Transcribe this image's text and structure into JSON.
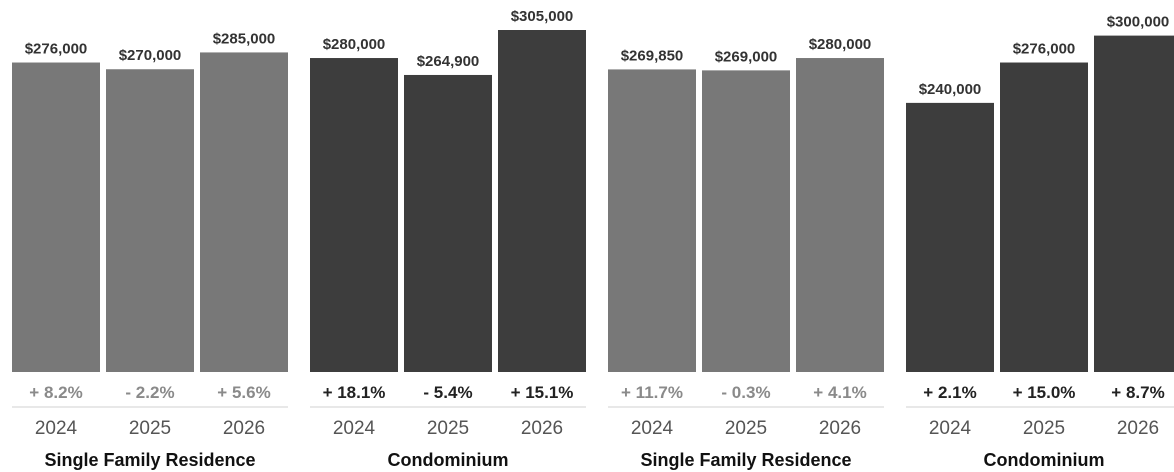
{
  "chart_data": [
    {
      "type": "bar",
      "title": "Single Family Residence",
      "categories": [
        "2024",
        "2025",
        "2026"
      ],
      "values": [
        276000,
        270000,
        285000
      ],
      "value_labels": [
        "$276,000",
        "$270,000",
        "$285,000"
      ],
      "change_labels": [
        "+ 8.2%",
        "- 2.2%",
        "+ 5.6%"
      ],
      "color": "#787878",
      "change_color": "#8a8a8a",
      "ylim": [
        0,
        305000
      ]
    },
    {
      "type": "bar",
      "title": "Condominium",
      "categories": [
        "2024",
        "2025",
        "2026"
      ],
      "values": [
        280000,
        264900,
        305000
      ],
      "value_labels": [
        "$280,000",
        "$264,900",
        "$305,000"
      ],
      "change_labels": [
        "+ 18.1%",
        "- 5.4%",
        "+ 15.1%"
      ],
      "color": "#3d3d3d",
      "change_color": "#222222",
      "ylim": [
        0,
        305000
      ]
    },
    {
      "type": "bar",
      "title": "Single Family Residence",
      "categories": [
        "2024",
        "2025",
        "2026"
      ],
      "values": [
        269850,
        269000,
        280000
      ],
      "value_labels": [
        "$269,850",
        "$269,000",
        "$280,000"
      ],
      "change_labels": [
        "+ 11.7%",
        "- 0.3%",
        "+ 4.1%"
      ],
      "color": "#787878",
      "change_color": "#8a8a8a",
      "ylim": [
        0,
        305000
      ]
    },
    {
      "type": "bar",
      "title": "Condominium",
      "categories": [
        "2024",
        "2025",
        "2026"
      ],
      "values": [
        240000,
        276000,
        300000
      ],
      "value_labels": [
        "$240,000",
        "$276,000",
        "$300,000"
      ],
      "change_labels": [
        "+ 2.1%",
        "+ 15.0%",
        "+ 8.7%"
      ],
      "color": "#3d3d3d",
      "change_color": "#222222",
      "ylim": [
        0,
        305000
      ]
    }
  ]
}
